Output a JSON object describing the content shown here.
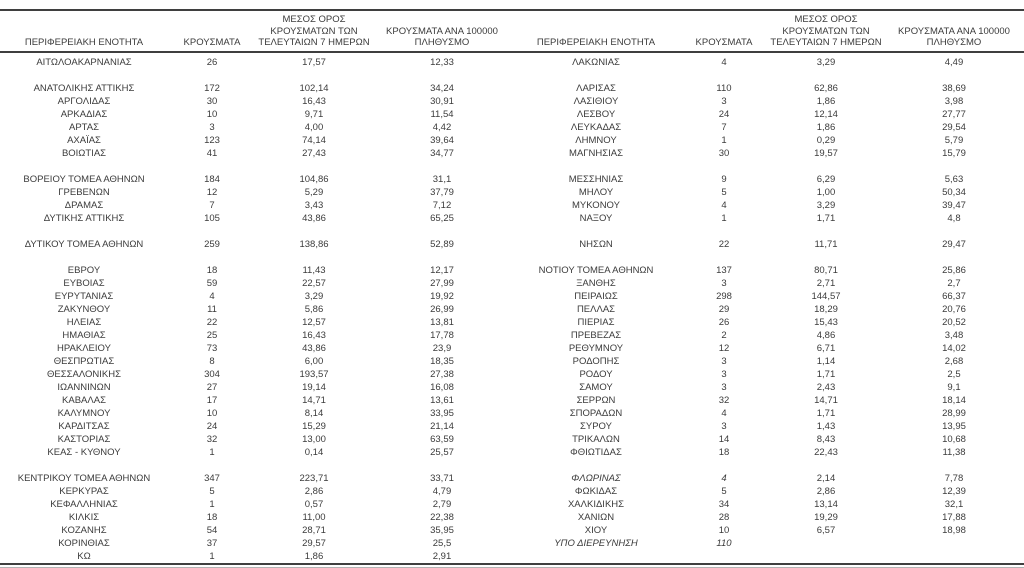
{
  "table": {
    "headers": {
      "region": "ΠΕΡΙΦΕΡΕΙΑΚΗ ΕΝΟΤΗΤΑ",
      "cases": "ΚΡΟΥΣΜΑΤΑ",
      "avg7_lines": [
        "ΜΕΣΟΣ ΟΡΟΣ",
        "ΚΡΟΥΣΜΑΤΩΝ ΤΩΝ",
        "ΤΕΛΕΥΤΑΙΩΝ 7 ΗΜΕΡΩΝ"
      ],
      "per100k_lines": [
        "ΚΡΟΥΣΜΑΤΑ ΑΝΑ 100000",
        "ΠΛΗΘΥΣΜΟ"
      ]
    },
    "rows": [
      {
        "l": [
          "ΑΙΤΩΛΟΑΚΑΡΝΑΝΙΑΣ",
          "26",
          "17,57",
          "12,33"
        ],
        "r": [
          "ΛΑΚΩΝΙΑΣ",
          "4",
          "3,29",
          "4,49"
        ]
      },
      {
        "sep": true
      },
      {
        "l": [
          "ΑΝΑΤΟΛΙΚΗΣ ΑΤΤΙΚΗΣ",
          "172",
          "102,14",
          "34,24"
        ],
        "r": [
          "ΛΑΡΙΣΑΣ",
          "110",
          "62,86",
          "38,69"
        ]
      },
      {
        "l": [
          "ΑΡΓΟΛΙΔΑΣ",
          "30",
          "16,43",
          "30,91"
        ],
        "r": [
          "ΛΑΣΙΘΙΟΥ",
          "3",
          "1,86",
          "3,98"
        ]
      },
      {
        "l": [
          "ΑΡΚΑΔΙΑΣ",
          "10",
          "9,71",
          "11,54"
        ],
        "r": [
          "ΛΕΣΒΟΥ",
          "24",
          "12,14",
          "27,77"
        ]
      },
      {
        "l": [
          "ΑΡΤΑΣ",
          "3",
          "4,00",
          "4,42"
        ],
        "r": [
          "ΛΕΥΚΑΔΑΣ",
          "7",
          "1,86",
          "29,54"
        ]
      },
      {
        "l": [
          "ΑΧΑΪΑΣ",
          "123",
          "74,14",
          "39,64"
        ],
        "r": [
          "ΛΗΜΝΟΥ",
          "1",
          "0,29",
          "5,79"
        ]
      },
      {
        "l": [
          "ΒΟΙΩΤΙΑΣ",
          "41",
          "27,43",
          "34,77"
        ],
        "r": [
          "ΜΑΓΝΗΣΙΑΣ",
          "30",
          "19,57",
          "15,79"
        ]
      },
      {
        "sep": true
      },
      {
        "l": [
          "ΒΟΡΕΙΟΥ ΤΟΜΕΑ ΑΘΗΝΩΝ",
          "184",
          "104,86",
          "31,1"
        ],
        "r": [
          "ΜΕΣΣΗΝΙΑΣ",
          "9",
          "6,29",
          "5,63"
        ]
      },
      {
        "l": [
          "ΓΡΕΒΕΝΩΝ",
          "12",
          "5,29",
          "37,79"
        ],
        "r": [
          "ΜΗΛΟΥ",
          "5",
          "1,00",
          "50,34"
        ]
      },
      {
        "l": [
          "ΔΡΑΜΑΣ",
          "7",
          "3,43",
          "7,12"
        ],
        "r": [
          "ΜΥΚΟΝΟΥ",
          "4",
          "3,29",
          "39,47"
        ]
      },
      {
        "l": [
          "ΔΥΤΙΚΗΣ ΑΤΤΙΚΗΣ",
          "105",
          "43,86",
          "65,25"
        ],
        "r": [
          "ΝΑΞΟΥ",
          "1",
          "1,71",
          "4,8"
        ]
      },
      {
        "sep": true
      },
      {
        "l": [
          "ΔΥΤΙΚΟΥ ΤΟΜΕΑ ΑΘΗΝΩΝ",
          "259",
          "138,86",
          "52,89"
        ],
        "r": [
          "ΝΗΣΩΝ",
          "22",
          "11,71",
          "29,47"
        ]
      },
      {
        "sep": true
      },
      {
        "l": [
          "ΕΒΡΟΥ",
          "18",
          "11,43",
          "12,17"
        ],
        "r": [
          "ΝΟΤΙΟΥ ΤΟΜΕΑ ΑΘΗΝΩΝ",
          "137",
          "80,71",
          "25,86"
        ]
      },
      {
        "l": [
          "ΕΥΒΟΙΑΣ",
          "59",
          "22,57",
          "27,99"
        ],
        "r": [
          "ΞΑΝΘΗΣ",
          "3",
          "2,71",
          "2,7"
        ]
      },
      {
        "l": [
          "ΕΥΡΥΤΑΝΙΑΣ",
          "4",
          "3,29",
          "19,92"
        ],
        "r": [
          "ΠΕΙΡΑΙΩΣ",
          "298",
          "144,57",
          "66,37"
        ]
      },
      {
        "l": [
          "ΖΑΚΥΝΘΟΥ",
          "11",
          "5,86",
          "26,99"
        ],
        "r": [
          "ΠΕΛΛΑΣ",
          "29",
          "18,29",
          "20,76"
        ]
      },
      {
        "l": [
          "ΗΛΕΙΑΣ",
          "22",
          "12,57",
          "13,81"
        ],
        "r": [
          "ΠΙΕΡΙΑΣ",
          "26",
          "15,43",
          "20,52"
        ]
      },
      {
        "l": [
          "ΗΜΑΘΙΑΣ",
          "25",
          "16,43",
          "17,78"
        ],
        "r": [
          "ΠΡΕΒΕΖΑΣ",
          "2",
          "4,86",
          "3,48"
        ]
      },
      {
        "l": [
          "ΗΡΑΚΛΕΙΟΥ",
          "73",
          "43,86",
          "23,9"
        ],
        "r": [
          "ΡΕΘΥΜΝΟΥ",
          "12",
          "6,71",
          "14,02"
        ]
      },
      {
        "l": [
          "ΘΕΣΠΡΩΤΙΑΣ",
          "8",
          "6,00",
          "18,35"
        ],
        "r": [
          "ΡΟΔΟΠΗΣ",
          "3",
          "1,14",
          "2,68"
        ]
      },
      {
        "l": [
          "ΘΕΣΣΑΛΟΝΙΚΗΣ",
          "304",
          "193,57",
          "27,38"
        ],
        "r": [
          "ΡΟΔΟΥ",
          "3",
          "1,71",
          "2,5"
        ]
      },
      {
        "l": [
          "ΙΩΑΝΝΙΝΩΝ",
          "27",
          "19,14",
          "16,08"
        ],
        "r": [
          "ΣΑΜΟΥ",
          "3",
          "2,43",
          "9,1"
        ]
      },
      {
        "l": [
          "ΚΑΒΑΛΑΣ",
          "17",
          "14,71",
          "13,61"
        ],
        "r": [
          "ΣΕΡΡΩΝ",
          "32",
          "14,71",
          "18,14"
        ]
      },
      {
        "l": [
          "ΚΑΛΥΜΝΟΥ",
          "10",
          "8,14",
          "33,95"
        ],
        "r": [
          "ΣΠΟΡΑΔΩΝ",
          "4",
          "1,71",
          "28,99"
        ]
      },
      {
        "l": [
          "ΚΑΡΔΙΤΣΑΣ",
          "24",
          "15,29",
          "21,14"
        ],
        "r": [
          "ΣΥΡΟΥ",
          "3",
          "1,43",
          "13,95"
        ]
      },
      {
        "l": [
          "ΚΑΣΤΟΡΙΑΣ",
          "32",
          "13,00",
          "63,59"
        ],
        "r": [
          "ΤΡΙΚΑΛΩΝ",
          "14",
          "8,43",
          "10,68"
        ]
      },
      {
        "l": [
          "ΚΕΑΣ - ΚΥΘΝΟΥ",
          "1",
          "0,14",
          "25,57"
        ],
        "r": [
          "ΦΘΙΩΤΙΔΑΣ",
          "18",
          "22,43",
          "11,38"
        ]
      },
      {
        "sep": true
      },
      {
        "l": [
          "ΚΕΝΤΡΙΚΟΥ ΤΟΜΕΑ ΑΘΗΝΩΝ",
          "347",
          "223,71",
          "33,71"
        ],
        "r": [
          "ΦΛΩΡΙΝΑΣ",
          "4",
          "2,14",
          "7,78"
        ],
        "r_italic": [
          true,
          true,
          false,
          false
        ]
      },
      {
        "l": [
          "ΚΕΡΚΥΡΑΣ",
          "5",
          "2,86",
          "4,79"
        ],
        "r": [
          "ΦΩΚΙΔΑΣ",
          "5",
          "2,86",
          "12,39"
        ]
      },
      {
        "l": [
          "ΚΕΦΑΛΛΗΝΙΑΣ",
          "1",
          "0,57",
          "2,79"
        ],
        "r": [
          "ΧΑΛΚΙΔΙΚΗΣ",
          "34",
          "13,14",
          "32,1"
        ]
      },
      {
        "l": [
          "ΚΙΛΚΙΣ",
          "18",
          "11,00",
          "22,38"
        ],
        "r": [
          "ΧΑΝΙΩΝ",
          "28",
          "19,29",
          "17,88"
        ]
      },
      {
        "l": [
          "ΚΟΖΑΝΗΣ",
          "54",
          "28,71",
          "35,95"
        ],
        "r": [
          "ΧΙΟΥ",
          "10",
          "6,57",
          "18,98"
        ]
      },
      {
        "l": [
          "ΚΟΡΙΝΘΙΑΣ",
          "37",
          "29,57",
          "25,5"
        ],
        "r": [
          "ΥΠΟ ΔΙΕΡΕΥΝΗΣΗ",
          "110",
          "",
          ""
        ],
        "r_italic": [
          true,
          true,
          false,
          false
        ]
      },
      {
        "l": [
          "ΚΩ",
          "1",
          "1,86",
          "2,91"
        ],
        "r": [
          "",
          "",
          "",
          ""
        ]
      }
    ],
    "colors": {
      "text": "#3b3b3b",
      "rule": "#3f3f3f",
      "sub_rule": "#b3b3b3",
      "background": "#ffffff"
    }
  }
}
